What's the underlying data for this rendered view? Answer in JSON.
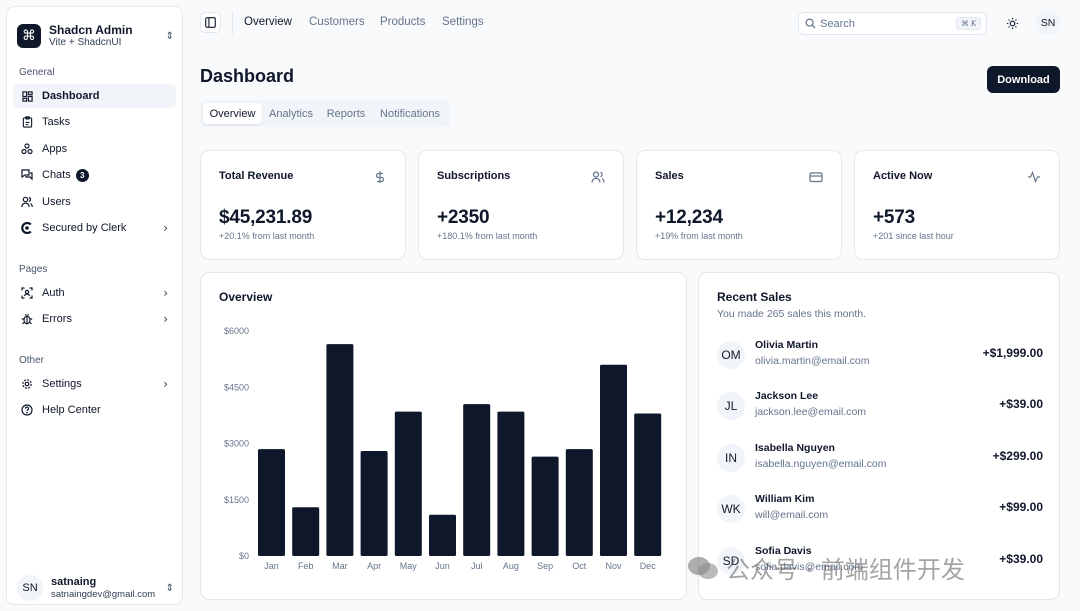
{
  "sidebar": {
    "brand": {
      "name": "Shadcn Admin",
      "sub": "Vite + ShadcnUI",
      "logo_icon": "command-icon"
    },
    "groups": [
      {
        "label": "General"
      },
      {
        "label": "Pages"
      },
      {
        "label": "Other"
      }
    ],
    "items": [
      {
        "label": "Dashboard",
        "icon": "layout-dashboard-icon",
        "active": true
      },
      {
        "label": "Tasks",
        "icon": "clipboard-icon"
      },
      {
        "label": "Apps",
        "icon": "apps-icon"
      },
      {
        "label": "Chats",
        "icon": "messages-icon",
        "badge": "3"
      },
      {
        "label": "Users",
        "icon": "users-icon"
      },
      {
        "label": "Secured by Clerk",
        "icon": "clerk-icon"
      },
      {
        "label": "Auth",
        "icon": "auth-icon"
      },
      {
        "label": "Errors",
        "icon": "bug-icon"
      },
      {
        "label": "Settings",
        "icon": "gear-icon"
      },
      {
        "label": "Help Center",
        "icon": "help-icon"
      }
    ],
    "user": {
      "initials": "SN",
      "name": "satnaing",
      "email": "satnaingdev@gmail.com"
    }
  },
  "topbar": {
    "nav": [
      "Overview",
      "Customers",
      "Products",
      "Settings"
    ],
    "search_placeholder": "Search",
    "shortcut": "⌘ K",
    "avatar": "SN"
  },
  "page": {
    "title": "Dashboard",
    "download_label": "Download",
    "tabs": [
      "Overview",
      "Analytics",
      "Reports",
      "Notifications"
    ]
  },
  "stats": [
    {
      "title": "Total Revenue",
      "value": "$45,231.89",
      "sub": "+20.1% from last month",
      "icon": "dollar-icon"
    },
    {
      "title": "Subscriptions",
      "value": "+2350",
      "sub": "+180.1% from last month",
      "icon": "users-icon"
    },
    {
      "title": "Sales",
      "value": "+12,234",
      "sub": "+19% from last month",
      "icon": "credit-card-icon"
    },
    {
      "title": "Active Now",
      "value": "+573",
      "sub": "+201 since last hour",
      "icon": "activity-icon"
    }
  ],
  "overview": {
    "title": "Overview"
  },
  "chart_data": {
    "type": "bar",
    "title": "Overview",
    "categories": [
      "Jan",
      "Feb",
      "Mar",
      "Apr",
      "May",
      "Jun",
      "Jul",
      "Aug",
      "Sep",
      "Oct",
      "Nov",
      "Dec"
    ],
    "values": [
      2850,
      1300,
      5650,
      2800,
      3850,
      1100,
      4050,
      3850,
      2650,
      2850,
      5100,
      3800
    ],
    "yticks": [
      "$6000",
      "$4500",
      "$3000",
      "$1500",
      "$0"
    ],
    "ylim": [
      0,
      6000
    ],
    "color": "#0f172a",
    "xlabel": "",
    "ylabel": ""
  },
  "recent_sales": {
    "title": "Recent Sales",
    "desc": "You made 265 sales this month.",
    "items": [
      {
        "initials": "OM",
        "name": "Olivia Martin",
        "email": "olivia.martin@email.com",
        "amount": "+$1,999.00"
      },
      {
        "initials": "JL",
        "name": "Jackson Lee",
        "email": "jackson.lee@email.com",
        "amount": "+$39.00"
      },
      {
        "initials": "IN",
        "name": "Isabella Nguyen",
        "email": "isabella.nguyen@email.com",
        "amount": "+$299.00"
      },
      {
        "initials": "WK",
        "name": "William Kim",
        "email": "will@email.com",
        "amount": "+$99.00"
      },
      {
        "initials": "SD",
        "name": "Sofia Davis",
        "email": "sofia.davis@email.com",
        "amount": "+$39.00"
      }
    ]
  },
  "watermark": "公众号 · 前端组件开发"
}
